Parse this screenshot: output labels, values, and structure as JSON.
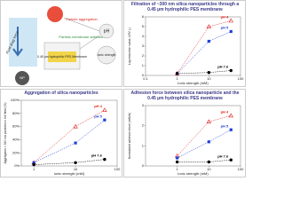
{
  "diagram": {
    "np": "NP",
    "drag": "Fluid drag force",
    "aggregation": "Particle aggregation",
    "adhesion": "Particle-membrane adhesion",
    "membrane": "0.45 µm hydrophilic PES Membrane",
    "ph": "pH",
    "ionic": "Ionic strength"
  },
  "chart_data": [
    {
      "type": "line",
      "title": "Filtration of ~300 nm silica nanoparticles through a 0.45 µm hydrophilic PES membrane",
      "xlabel": "Ionic strength (mM)",
      "ylabel": "Log reduction value, LRV (-)",
      "xscale": "log",
      "xlim": [
        0.1,
        100
      ],
      "xticks": [
        0.1,
        1,
        10,
        100
      ],
      "ylim": [
        0,
        6
      ],
      "yticks": [
        0,
        1,
        2,
        3,
        4,
        5,
        6
      ],
      "x": [
        1,
        10,
        50
      ],
      "series": [
        {
          "name": "pH 4",
          "color": "#e0201b",
          "marker": "triangle",
          "values": [
            0.2,
            5.0,
            5.6
          ]
        },
        {
          "name": "pH 5",
          "color": "#1f3fd6",
          "marker": "square",
          "values": [
            0.2,
            3.5,
            4.5
          ]
        },
        {
          "name": "pH 7.6",
          "color": "#000000",
          "marker": "circle",
          "values": [
            0.2,
            0.3,
            0.5
          ]
        }
      ]
    },
    {
      "type": "line",
      "title": "Aggregation of silica nanoparticles",
      "xlabel": "Ionic strength (mM)",
      "ylabel": "Aggregates > 330 nm particles in the feed (%)",
      "xscale": "log",
      "xlim": [
        0.5,
        100
      ],
      "xticks": [
        1,
        10,
        100
      ],
      "ylim": [
        0,
        100
      ],
      "yticks": [
        {
          "value": 0,
          "label": "0%"
        },
        {
          "value": 20,
          "label": "20%"
        },
        {
          "value": 40,
          "label": "40%"
        },
        {
          "value": 60,
          "label": "60%"
        },
        {
          "value": 80,
          "label": "80%"
        },
        {
          "value": 100,
          "label": "100%"
        }
      ],
      "x": [
        1,
        10,
        50
      ],
      "series": [
        {
          "name": "pH 4",
          "color": "#e0201b",
          "marker": "triangle",
          "values": [
            5,
            60,
            85
          ]
        },
        {
          "name": "pH 5",
          "color": "#1f3fd6",
          "marker": "square",
          "values": [
            5,
            35,
            70
          ]
        },
        {
          "name": "pH 7.6",
          "color": "#000000",
          "marker": "circle",
          "values": [
            2,
            5,
            10
          ]
        }
      ]
    },
    {
      "type": "line",
      "title": "Adhesion force between silica nanoparticle and the 0.45 µm hydrophilic PES membrane",
      "xlabel": "Ionic strength (mM)",
      "ylabel": "Normalized adhesion force (mN/m)",
      "xscale": "log",
      "xlim": [
        0.1,
        100
      ],
      "xticks": [
        1,
        10,
        100
      ],
      "ylim": [
        0,
        3
      ],
      "yticks": [
        0,
        1,
        2,
        3
      ],
      "x": [
        1,
        10,
        50
      ],
      "series": [
        {
          "name": "pH 4",
          "color": "#e0201b",
          "marker": "triangle",
          "values": [
            0.5,
            2.2,
            2.5
          ]
        },
        {
          "name": "pH 5",
          "color": "#1f3fd6",
          "marker": "square",
          "values": [
            0.4,
            1.2,
            1.8
          ]
        },
        {
          "name": "pH 7.6",
          "color": "#000000",
          "marker": "circle",
          "values": [
            0.2,
            0.2,
            0.3
          ]
        }
      ]
    }
  ]
}
